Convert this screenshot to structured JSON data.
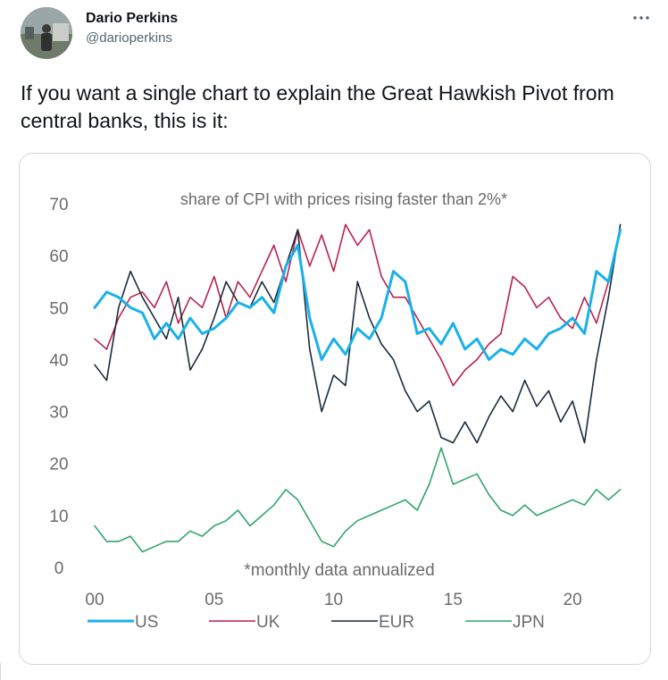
{
  "tweet": {
    "author_name": "Dario Perkins",
    "author_handle": "@darioperkins",
    "more_icon": "more-horizontal-icon",
    "text": "If you want a single chart to explain the Great Hawkish Pivot from central banks, this is it:"
  },
  "chart_data": {
    "type": "line",
    "title": "share of CPI with prices rising faster than 2%*",
    "annotation": "*monthly data annualized",
    "xlabel": "",
    "ylabel": "",
    "xlim": [
      2000,
      2022.2
    ],
    "ylim": [
      0,
      70
    ],
    "yticks": [
      0,
      10,
      20,
      30,
      40,
      50,
      60,
      70
    ],
    "xticks": [
      2000,
      2005,
      2010,
      2015,
      2020
    ],
    "xtick_labels": [
      "00",
      "05",
      "10",
      "15",
      "20"
    ],
    "grid": false,
    "legend_position": "bottom",
    "series": [
      {
        "name": "US",
        "color": "#1ab0ea",
        "x": [
          2000,
          2000.5,
          2001,
          2001.5,
          2002,
          2002.5,
          2003,
          2003.5,
          2004,
          2004.5,
          2005,
          2005.5,
          2006,
          2006.5,
          2007,
          2007.5,
          2008,
          2008.5,
          2009,
          2009.5,
          2010,
          2010.5,
          2011,
          2011.5,
          2012,
          2012.5,
          2013,
          2013.5,
          2014,
          2014.5,
          2015,
          2015.5,
          2016,
          2016.5,
          2017,
          2017.5,
          2018,
          2018.5,
          2019,
          2019.5,
          2020,
          2020.5,
          2021,
          2021.5,
          2022
        ],
        "values": [
          50,
          53,
          52,
          50,
          49,
          44,
          47,
          44,
          48,
          45,
          46,
          48,
          51,
          50,
          52,
          49,
          58,
          62,
          48,
          40,
          44,
          41,
          46,
          44,
          48,
          57,
          55,
          45,
          46,
          43,
          47,
          42,
          44,
          40,
          42,
          41,
          44,
          42,
          45,
          46,
          48,
          45,
          57,
          55,
          65
        ]
      },
      {
        "name": "UK",
        "color": "#b9224d",
        "x": [
          2000,
          2000.5,
          2001,
          2001.5,
          2002,
          2002.5,
          2003,
          2003.5,
          2004,
          2004.5,
          2005,
          2005.5,
          2006,
          2006.5,
          2007,
          2007.5,
          2008,
          2008.5,
          2009,
          2009.5,
          2010,
          2010.5,
          2011,
          2011.5,
          2012,
          2012.5,
          2013,
          2013.5,
          2014,
          2014.5,
          2015,
          2015.5,
          2016,
          2016.5,
          2017,
          2017.5,
          2018,
          2018.5,
          2019,
          2019.5,
          2020,
          2020.5,
          2021,
          2021.5,
          2022
        ],
        "values": [
          44,
          42,
          48,
          52,
          53,
          50,
          55,
          47,
          52,
          50,
          56,
          48,
          55,
          52,
          57,
          62,
          55,
          65,
          58,
          64,
          57,
          66,
          62,
          65,
          56,
          52,
          52,
          48,
          44,
          40,
          35,
          38,
          40,
          43,
          45,
          56,
          54,
          50,
          52,
          48,
          46,
          52,
          47,
          55,
          65
        ]
      },
      {
        "name": "EUR",
        "color": "#1b2c3c",
        "x": [
          2000,
          2000.5,
          2001,
          2001.5,
          2002,
          2002.5,
          2003,
          2003.5,
          2004,
          2004.5,
          2005,
          2005.5,
          2006,
          2006.5,
          2007,
          2007.5,
          2008,
          2008.5,
          2009,
          2009.5,
          2010,
          2010.5,
          2011,
          2011.5,
          2012,
          2012.5,
          2013,
          2013.5,
          2014,
          2014.5,
          2015,
          2015.5,
          2016,
          2016.5,
          2017,
          2017.5,
          2018,
          2018.5,
          2019,
          2019.5,
          2020,
          2020.5,
          2021,
          2021.5,
          2022
        ],
        "values": [
          39,
          36,
          50,
          57,
          52,
          48,
          44,
          52,
          38,
          42,
          48,
          55,
          51,
          50,
          55,
          51,
          58,
          65,
          42,
          30,
          37,
          35,
          55,
          48,
          43,
          40,
          34,
          30,
          32,
          25,
          24,
          28,
          24,
          29,
          33,
          30,
          36,
          31,
          34,
          28,
          32,
          24,
          40,
          52,
          66
        ]
      },
      {
        "name": "JPN",
        "color": "#31a56c",
        "x": [
          2000,
          2000.5,
          2001,
          2001.5,
          2002,
          2002.5,
          2003,
          2003.5,
          2004,
          2004.5,
          2005,
          2005.5,
          2006,
          2006.5,
          2007,
          2007.5,
          2008,
          2008.5,
          2009,
          2009.5,
          2010,
          2010.5,
          2011,
          2011.5,
          2012,
          2012.5,
          2013,
          2013.5,
          2014,
          2014.5,
          2015,
          2015.5,
          2016,
          2016.5,
          2017,
          2017.5,
          2018,
          2018.5,
          2019,
          2019.5,
          2020,
          2020.5,
          2021,
          2021.5,
          2022
        ],
        "values": [
          8,
          5,
          5,
          6,
          3,
          4,
          5,
          5,
          7,
          6,
          8,
          9,
          11,
          8,
          10,
          12,
          15,
          13,
          9,
          5,
          4,
          7,
          9,
          10,
          11,
          12,
          13,
          11,
          16,
          23,
          16,
          17,
          18,
          14,
          11,
          10,
          12,
          10,
          11,
          12,
          13,
          12,
          15,
          13,
          15
        ]
      }
    ]
  }
}
